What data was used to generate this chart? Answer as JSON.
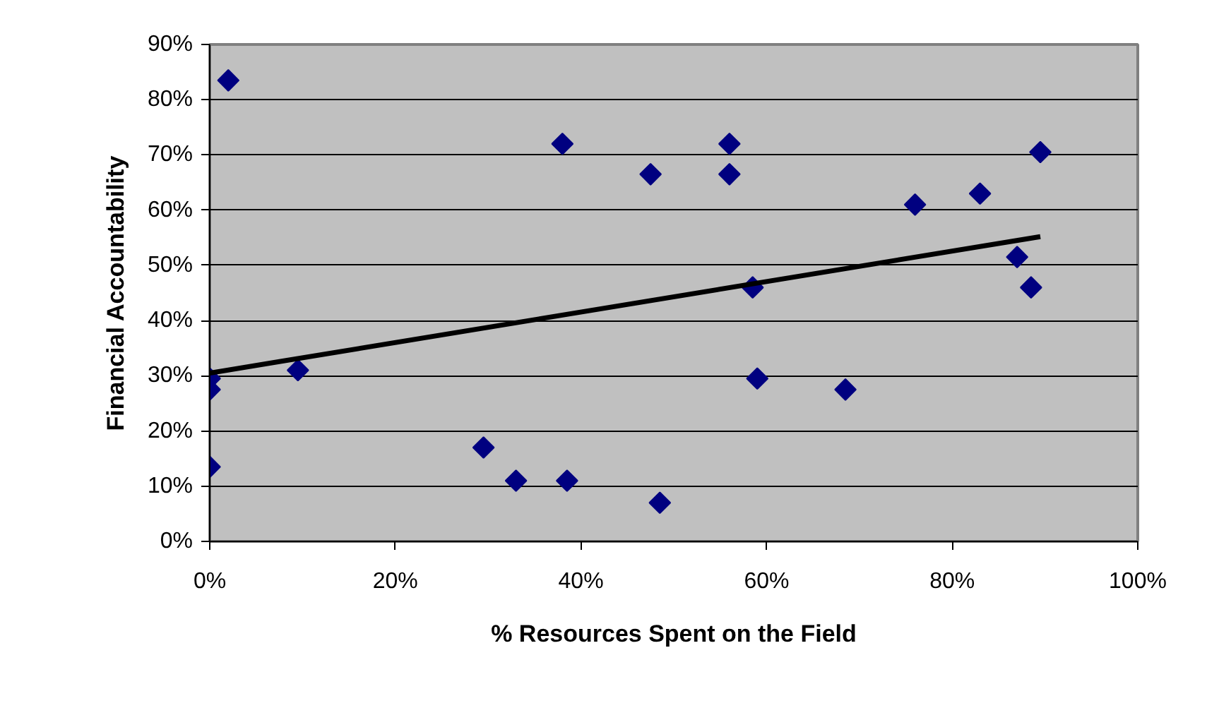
{
  "chart_data": {
    "type": "scatter",
    "xlabel": "% Resources Spent on the Field",
    "ylabel": "Financial Accountability",
    "xlim": [
      0,
      100
    ],
    "ylim": [
      0,
      90
    ],
    "xticks": [
      {
        "value": 0,
        "label": "0%"
      },
      {
        "value": 20,
        "label": "20%"
      },
      {
        "value": 40,
        "label": "40%"
      },
      {
        "value": 60,
        "label": "60%"
      },
      {
        "value": 80,
        "label": "80%"
      },
      {
        "value": 100,
        "label": "100%"
      }
    ],
    "yticks": [
      {
        "value": 0,
        "label": "0%"
      },
      {
        "value": 10,
        "label": "10%"
      },
      {
        "value": 20,
        "label": "20%"
      },
      {
        "value": 30,
        "label": "30%"
      },
      {
        "value": 40,
        "label": "40%"
      },
      {
        "value": 50,
        "label": "50%"
      },
      {
        "value": 60,
        "label": "60%"
      },
      {
        "value": 70,
        "label": "70%"
      },
      {
        "value": 80,
        "label": "80%"
      },
      {
        "value": 90,
        "label": "90%"
      }
    ],
    "grid": "y",
    "marker": "diamond",
    "series": [
      {
        "color": "#000080",
        "x": [
          2,
          0,
          0,
          0,
          9.5,
          29.5,
          33,
          38,
          56,
          47.5,
          56,
          58.5,
          59,
          68.5,
          38.5,
          48.5,
          76,
          83,
          89.5,
          87,
          88.5
        ],
        "values": [
          83.5,
          29.5,
          27.5,
          13.5,
          31,
          17,
          11,
          72,
          72,
          66.5,
          66.5,
          46,
          29.5,
          27.5,
          11,
          7,
          61,
          63,
          70.5,
          51.5,
          46
        ]
      },
      {
        "type": "line",
        "marker": "none",
        "color": "#000000",
        "x": [
          0,
          89.5
        ],
        "values": [
          30.5,
          55.2
        ]
      }
    ]
  }
}
